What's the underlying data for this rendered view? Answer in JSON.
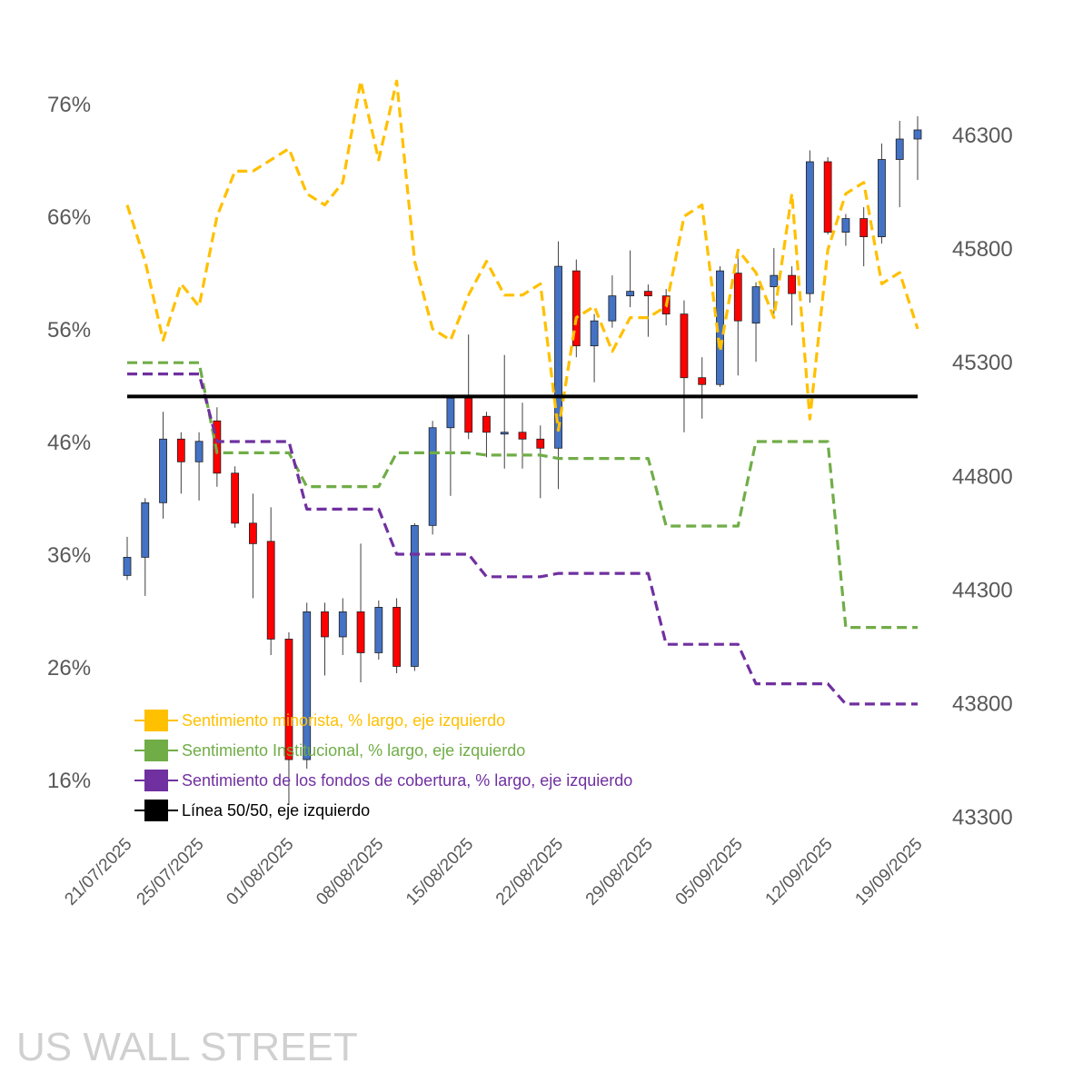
{
  "chart_data": {
    "type": "candlestick_line",
    "left_axis": {
      "ticks": [
        "76%",
        "66%",
        "56%",
        "46%",
        "36%",
        "26%",
        "16%"
      ],
      "values": [
        76,
        66,
        56,
        46,
        36,
        26,
        16
      ]
    },
    "right_axis": {
      "ticks": [
        "46300",
        "45800",
        "45300",
        "44800",
        "44300",
        "43800",
        "43300"
      ],
      "values": [
        46300,
        45800,
        45300,
        44800,
        44300,
        43800,
        43300
      ]
    },
    "date_labels": [
      "21/07/2025",
      "25/07/2025",
      "01/08/2025",
      "08/08/2025",
      "15/08/2025",
      "22/08/2025",
      "29/08/2025",
      "05/09/2025",
      "12/09/2025",
      "19/09/2025"
    ],
    "candles": [
      {
        "o": 44360,
        "c": 44440,
        "h": 44530,
        "l": 44340
      },
      {
        "o": 44440,
        "c": 44680,
        "h": 44700,
        "l": 44270
      },
      {
        "o": 44680,
        "c": 44960,
        "h": 45080,
        "l": 44610
      },
      {
        "o": 44960,
        "c": 44860,
        "h": 44990,
        "l": 44720
      },
      {
        "o": 44860,
        "c": 44950,
        "h": 44990,
        "l": 44690
      },
      {
        "o": 45040,
        "c": 44810,
        "h": 45100,
        "l": 44750
      },
      {
        "o": 44810,
        "c": 44590,
        "h": 44840,
        "l": 44570
      },
      {
        "o": 44590,
        "c": 44500,
        "h": 44720,
        "l": 44260
      },
      {
        "o": 44510,
        "c": 44080,
        "h": 44660,
        "l": 44010
      },
      {
        "o": 44080,
        "c": 43550,
        "h": 44110,
        "l": 43350
      },
      {
        "o": 43550,
        "c": 44200,
        "h": 44240,
        "l": 43510
      },
      {
        "o": 44200,
        "c": 44090,
        "h": 44240,
        "l": 43920
      },
      {
        "o": 44090,
        "c": 44200,
        "h": 44260,
        "l": 44010
      },
      {
        "o": 44200,
        "c": 44020,
        "h": 44500,
        "l": 43890
      },
      {
        "o": 44020,
        "c": 44220,
        "h": 44250,
        "l": 43990
      },
      {
        "o": 44220,
        "c": 43960,
        "h": 44260,
        "l": 43930
      },
      {
        "o": 43960,
        "c": 44580,
        "h": 44590,
        "l": 43940
      },
      {
        "o": 44580,
        "c": 45010,
        "h": 45040,
        "l": 44540
      },
      {
        "o": 45010,
        "c": 45140,
        "h": 45150,
        "l": 44710
      },
      {
        "o": 45140,
        "c": 44990,
        "h": 45420,
        "l": 44960
      },
      {
        "o": 45060,
        "c": 44990,
        "h": 45080,
        "l": 44880
      },
      {
        "o": 44990,
        "c": 44990,
        "h": 45330,
        "l": 44830
      },
      {
        "o": 44990,
        "c": 44960,
        "h": 45120,
        "l": 44830
      },
      {
        "o": 44960,
        "c": 44920,
        "h": 45020,
        "l": 44700
      },
      {
        "o": 44920,
        "c": 45720,
        "h": 45830,
        "l": 44740
      },
      {
        "o": 45700,
        "c": 45370,
        "h": 45750,
        "l": 45320
      },
      {
        "o": 45370,
        "c": 45480,
        "h": 45510,
        "l": 45210
      },
      {
        "o": 45480,
        "c": 45590,
        "h": 45680,
        "l": 45450
      },
      {
        "o": 45590,
        "c": 45610,
        "h": 45790,
        "l": 45540
      },
      {
        "o": 45610,
        "c": 45590,
        "h": 45640,
        "l": 45410
      },
      {
        "o": 45590,
        "c": 45510,
        "h": 45620,
        "l": 45460
      },
      {
        "o": 45510,
        "c": 45230,
        "h": 45570,
        "l": 44990
      },
      {
        "o": 45230,
        "c": 45200,
        "h": 45320,
        "l": 45050
      },
      {
        "o": 45200,
        "c": 45700,
        "h": 45720,
        "l": 45190
      },
      {
        "o": 45690,
        "c": 45480,
        "h": 45790,
        "l": 45240
      },
      {
        "o": 45470,
        "c": 45630,
        "h": 45650,
        "l": 45300
      },
      {
        "o": 45630,
        "c": 45680,
        "h": 45800,
        "l": 45510
      },
      {
        "o": 45680,
        "c": 45600,
        "h": 45720,
        "l": 45460
      },
      {
        "o": 45600,
        "c": 46180,
        "h": 46230,
        "l": 45560
      },
      {
        "o": 46180,
        "c": 45870,
        "h": 46200,
        "l": 45860
      },
      {
        "o": 45870,
        "c": 45930,
        "h": 45950,
        "l": 45810
      },
      {
        "o": 45930,
        "c": 45850,
        "h": 45980,
        "l": 45720
      },
      {
        "o": 45850,
        "c": 46190,
        "h": 46260,
        "l": 45820
      },
      {
        "o": 46190,
        "c": 46280,
        "h": 46360,
        "l": 45980
      },
      {
        "o": 46280,
        "c": 46320,
        "h": 46380,
        "l": 46100
      }
    ],
    "series": [
      {
        "name": "Sentimiento minorista, % largo, eje izquierdo",
        "color": "#FFC000",
        "values": [
          67,
          62,
          55,
          60,
          58,
          66,
          70,
          70,
          71,
          72,
          68,
          67,
          69,
          78,
          71,
          78,
          62,
          56,
          55,
          59,
          62,
          59,
          59,
          60,
          47,
          57,
          58,
          54,
          57,
          57,
          58,
          66,
          67,
          54,
          63,
          61,
          57,
          68,
          48,
          63,
          68,
          69,
          60,
          61,
          56
        ]
      },
      {
        "name": "Sentimiento Institucional, % largo, eje izquierdo",
        "color": "#70AD47",
        "values": [
          53,
          53,
          53,
          53,
          53,
          45,
          45,
          45,
          45,
          45,
          42,
          42,
          42,
          42,
          42,
          45,
          45,
          45,
          45,
          45,
          44.8,
          44.8,
          44.8,
          44.8,
          44.5,
          44.5,
          44.5,
          44.5,
          44.5,
          44.5,
          38.5,
          38.5,
          38.5,
          38.5,
          38.5,
          46,
          46,
          46,
          46,
          46,
          29.5,
          29.5,
          29.5,
          29.5,
          29.5
        ]
      },
      {
        "name": "Sentimiento de los fondos de cobertura, % largo, eje izquierdo",
        "color": "#7030A0",
        "values": [
          52,
          52,
          52,
          52,
          52,
          46,
          46,
          46,
          46,
          46,
          40,
          40,
          40,
          40,
          40,
          36,
          36,
          36,
          36,
          36,
          34,
          34,
          34,
          34,
          34.3,
          34.3,
          34.3,
          34.3,
          34.3,
          34.3,
          28,
          28,
          28,
          28,
          28,
          24.5,
          24.5,
          24.5,
          24.5,
          24.5,
          22.7,
          22.7,
          22.7,
          22.7,
          22.7
        ]
      },
      {
        "name": "Línea 50/50, eje izquierdo",
        "color": "#000000",
        "values": [
          50,
          50
        ]
      }
    ],
    "up_color": "#4472C4",
    "down_color": "#FF0000"
  },
  "legend": [
    {
      "label": "Sentimiento minorista, % largo, eje izquierdo",
      "color": "#FFC000"
    },
    {
      "label": "Sentimiento Institucional, % largo, eje izquierdo",
      "color": "#70AD47"
    },
    {
      "label": "Sentimiento de los fondos de cobertura, % largo, eje izquierdo",
      "color": "#7030A0"
    },
    {
      "label": "Línea 50/50, eje izquierdo",
      "color": "#000000"
    }
  ],
  "watermark": "US WALL STREET"
}
